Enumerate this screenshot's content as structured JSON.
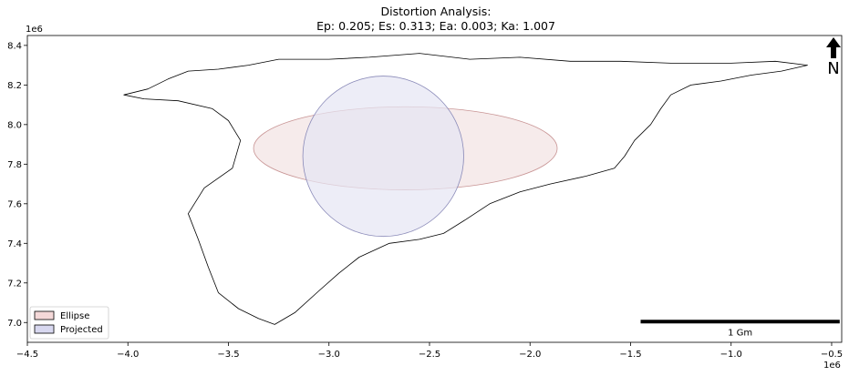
{
  "chart_data": {
    "type": "map",
    "title": "Distortion Analysis:",
    "subtitle": "Ep: 0.205; Es: 0.313; Ea: 0.003; Ka: 1.007",
    "xlim": [
      -4500000.0,
      -450000.0
    ],
    "ylim": [
      6900000.0,
      8450000.0
    ],
    "x_ticks": [
      -4500000.0,
      -4000000.0,
      -3500000.0,
      -3000000.0,
      -2500000.0,
      -2000000.0,
      -1500000.0,
      -1000000.0,
      -500000.0
    ],
    "x_tick_labels": [
      "−4.5",
      "−4.0",
      "−3.5",
      "−3.0",
      "−2.5",
      "−2.0",
      "−1.5",
      "−1.0",
      "−0.5"
    ],
    "y_ticks": [
      7000000.0,
      7200000.0,
      7400000.0,
      7600000.0,
      7800000.0,
      8000000.0,
      8200000.0,
      8400000.0
    ],
    "y_tick_labels": [
      "7.0",
      "7.2",
      "7.4",
      "7.6",
      "7.8",
      "8.0",
      "8.2",
      "8.4"
    ],
    "x_offset_label": "1e6",
    "y_offset_label": "1e6",
    "legend": {
      "placement": "lower-left",
      "entries": [
        {
          "label": "Ellipse",
          "fill": "#f4d8d8",
          "edge": "#000000"
        },
        {
          "label": "Projected",
          "fill": "#d8d8f0",
          "edge": "#000000"
        }
      ]
    },
    "ellipse": {
      "cx": -2620000.0,
      "cy": 7880000.0,
      "rx": 755000.0,
      "ry": 210000.0,
      "angle_deg": 0,
      "fill": "#f3e4e4",
      "edge": "#c89494"
    },
    "projected": {
      "cx": -2730000.0,
      "cy": 7840000.0,
      "rx": 400000.0,
      "ry": 405000.0,
      "fill": "#e6e6f4",
      "edge": "#8a8ab8"
    },
    "coastline": [
      [
        -3800000.0,
        8230000.0
      ],
      [
        -3700000.0,
        8270000.0
      ],
      [
        -3550000.0,
        8280000.0
      ],
      [
        -3400000.0,
        8300000.0
      ],
      [
        -3250000.0,
        8330000.0
      ],
      [
        -3000000.0,
        8330000.0
      ],
      [
        -2800000.0,
        8340000.0
      ],
      [
        -2550000.0,
        8360000.0
      ],
      [
        -2300000.0,
        8330000.0
      ],
      [
        -2050000.0,
        8340000.0
      ],
      [
        -1800000.0,
        8320000.0
      ],
      [
        -1550000.0,
        8320000.0
      ],
      [
        -1300000.0,
        8310000.0
      ],
      [
        -1000000.0,
        8310000.0
      ],
      [
        -780000.0,
        8320000.0
      ],
      [
        -620000.0,
        8300000.0
      ],
      [
        -750000.0,
        8270000.0
      ],
      [
        -900000.0,
        8250000.0
      ],
      [
        -1050000.0,
        8220000.0
      ],
      [
        -1200000.0,
        8200000.0
      ],
      [
        -1300000.0,
        8150000.0
      ],
      [
        -1350000.0,
        8080000.0
      ],
      [
        -1400000.0,
        8000000.0
      ],
      [
        -1480000.0,
        7920000.0
      ],
      [
        -1530000.0,
        7840000.0
      ],
      [
        -1580000.0,
        7780000.0
      ],
      [
        -1720000.0,
        7740000.0
      ],
      [
        -1900000.0,
        7700000.0
      ],
      [
        -2050000.0,
        7660000.0
      ],
      [
        -2200000.0,
        7600000.0
      ],
      [
        -2320000.0,
        7520000.0
      ],
      [
        -2430000.0,
        7450000.0
      ],
      [
        -2550000.0,
        7420000.0
      ],
      [
        -2700000.0,
        7400000.0
      ],
      [
        -2850000.0,
        7330000.0
      ],
      [
        -2950000.0,
        7250000.0
      ],
      [
        -3050000.0,
        7160000.0
      ],
      [
        -3170000.0,
        7050000.0
      ],
      [
        -3270000.0,
        6990000.0
      ],
      [
        -3350000.0,
        7020000.0
      ],
      [
        -3450000.0,
        7070000.0
      ],
      [
        -3550000.0,
        7150000.0
      ],
      [
        -3600000.0,
        7280000.0
      ],
      [
        -3650000.0,
        7420000.0
      ],
      [
        -3700000.0,
        7550000.0
      ],
      [
        -3620000.0,
        7680000.0
      ],
      [
        -3480000.0,
        7780000.0
      ],
      [
        -3440000.0,
        7920000.0
      ],
      [
        -3500000.0,
        8020000.0
      ],
      [
        -3580000.0,
        8080000.0
      ],
      [
        -3750000.0,
        8120000.0
      ],
      [
        -3920000.0,
        8130000.0
      ],
      [
        -4020000.0,
        8150000.0
      ],
      [
        -3900000.0,
        8180000.0
      ],
      [
        -3800000.0,
        8230000.0
      ]
    ],
    "scalebar": {
      "label": "1 Gm",
      "x_start": -1450000.0,
      "x_end": -460000.0,
      "y": 7000000.0
    },
    "north_arrow": {
      "label": "N"
    }
  }
}
